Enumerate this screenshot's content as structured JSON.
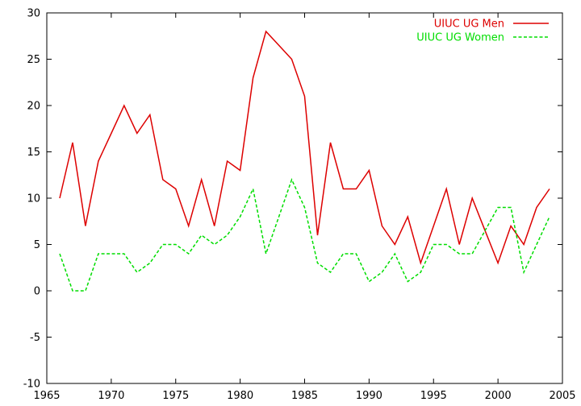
{
  "chart_data": {
    "type": "line",
    "title": "",
    "xlabel": "",
    "ylabel": "",
    "xlim": [
      1965,
      2005
    ],
    "ylim": [
      -10,
      30
    ],
    "xticks": [
      1965,
      1970,
      1975,
      1980,
      1985,
      1990,
      1995,
      2000,
      2005
    ],
    "yticks": [
      -10,
      -5,
      0,
      5,
      10,
      15,
      20,
      25,
      30
    ],
    "grid": false,
    "legend_position": "top-right",
    "x": [
      1966,
      1967,
      1968,
      1969,
      1970,
      1971,
      1972,
      1973,
      1974,
      1975,
      1976,
      1977,
      1978,
      1979,
      1980,
      1981,
      1982,
      1983,
      1984,
      1985,
      1986,
      1987,
      1988,
      1989,
      1990,
      1991,
      1992,
      1993,
      1994,
      1995,
      1996,
      1997,
      1998,
      1999,
      2000,
      2001,
      2002,
      2003,
      2004
    ],
    "series": [
      {
        "name": "UIUC UG Men",
        "color": "#dd0000",
        "dash": "solid",
        "values": [
          10,
          16,
          7,
          14,
          17,
          20,
          17,
          19,
          12,
          11,
          7,
          12,
          7,
          14,
          13,
          23,
          28,
          26.5,
          25,
          21,
          6,
          16,
          11,
          11,
          13,
          7,
          5,
          8,
          3,
          7,
          11,
          5,
          10,
          6.5,
          3,
          7,
          5,
          9,
          11
        ]
      },
      {
        "name": "UIUC UG Women",
        "color": "#00dd00",
        "dash": "dashed",
        "values": [
          4,
          0,
          0,
          4,
          4,
          4,
          2,
          3,
          5,
          5,
          4,
          6,
          5,
          6,
          8,
          11,
          4,
          8,
          12,
          9,
          3,
          2,
          4,
          4,
          1,
          2,
          4,
          1,
          2,
          5,
          5,
          4,
          4,
          6.5,
          9,
          9,
          2,
          5,
          8
        ]
      }
    ]
  }
}
